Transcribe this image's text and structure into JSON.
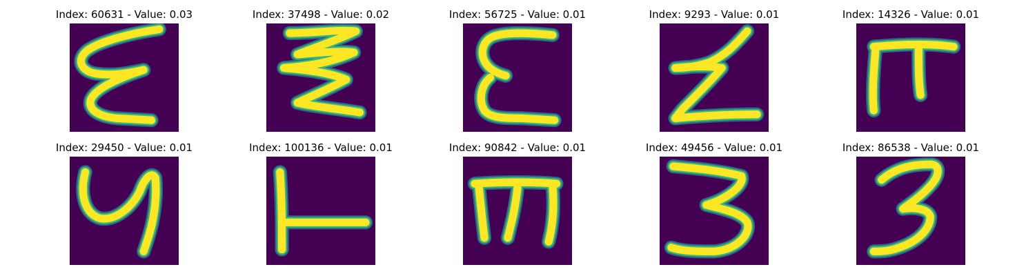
{
  "colors": {
    "background": "#440154",
    "stroke_low": "#2b778e",
    "stroke_mid": "#35b779",
    "stroke_high": "#fde725",
    "edge": "#21918c"
  },
  "images": [
    {
      "index": "60631",
      "value": "0.03",
      "title": "Index: 60631 - Value: 0.03",
      "glyph": "epsilon-loop"
    },
    {
      "index": "37498",
      "value": "0.02",
      "title": "Index: 37498 - Value: 0.02",
      "glyph": "zigzag"
    },
    {
      "index": "56725",
      "value": "0.01",
      "title": "Index: 56725 - Value: 0.01",
      "glyph": "epsilon"
    },
    {
      "index": "9293",
      "value": "0.01",
      "title": "Index: 9293 - Value: 0.01",
      "glyph": "z"
    },
    {
      "index": "14326",
      "value": "0.01",
      "title": "Index: 14326 - Value: 0.01",
      "glyph": "pi"
    },
    {
      "index": "29450",
      "value": "0.01",
      "title": "Index: 29450 - Value: 0.01",
      "glyph": "y"
    },
    {
      "index": "100136",
      "value": "0.01",
      "title": "Index: 100136 - Value: 0.01",
      "glyph": "t-rotated"
    },
    {
      "index": "90842",
      "value": "0.01",
      "title": "Index: 90842 - Value: 0.01",
      "glyph": "m"
    },
    {
      "index": "49456",
      "value": "0.01",
      "title": "Index: 49456 - Value: 0.01",
      "glyph": "three-open"
    },
    {
      "index": "86538",
      "value": "0.01",
      "title": "Index: 86538 - Value: 0.01",
      "glyph": "three"
    }
  ]
}
